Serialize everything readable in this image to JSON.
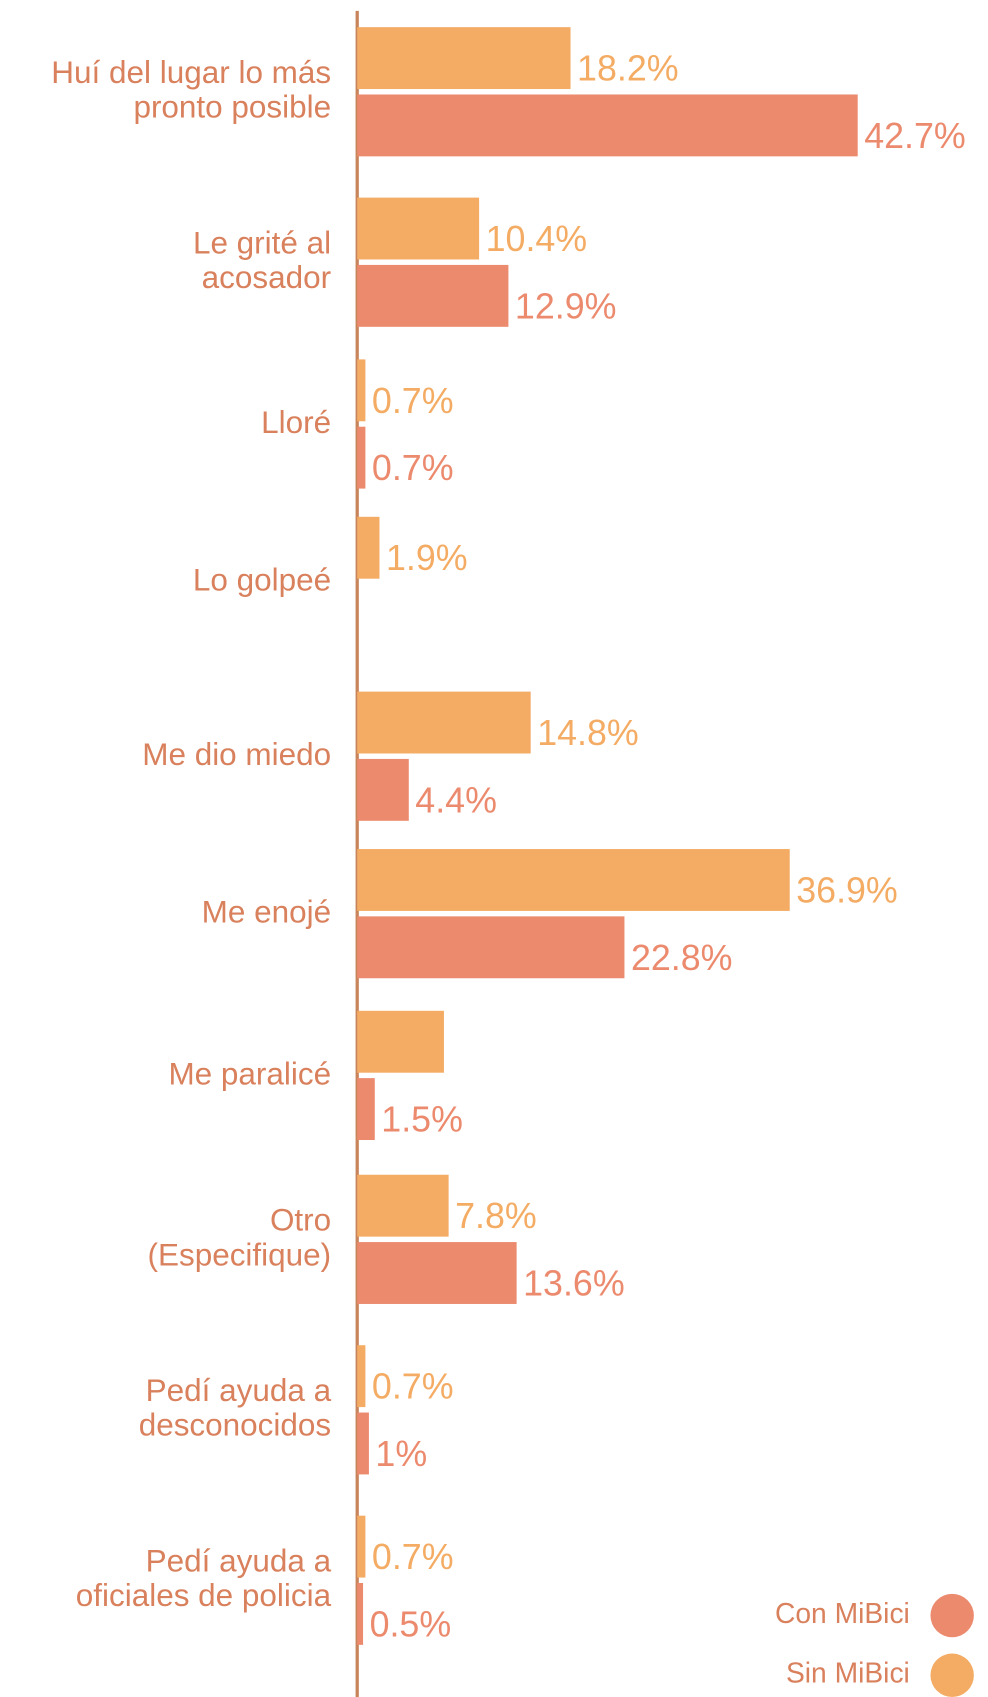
{
  "chart_data": {
    "type": "hbar",
    "categories": [
      "Huí del lugar lo más\npronto posible",
      "Le grité al\nacosador",
      "Lloré",
      "Lo golpeé",
      "Me dio miedo",
      "Me enojé",
      "Me paralicé",
      "Otro\n(Especifique)",
      "Pedí ayuda a\ndesconocidos",
      "Pedí ayuda a\noficiales de policia"
    ],
    "series": [
      {
        "name": "Sin MiBici",
        "color": "#f4ac64",
        "values": [
          18.2,
          10.4,
          0.7,
          1.9,
          14.8,
          36.9,
          7.4,
          7.8,
          0.7,
          0.7
        ],
        "value_labels": [
          "18.2%",
          "10.4%",
          "0.7%",
          "1.9%",
          "14.8%",
          "36.9%",
          null,
          "7.8%",
          "0.7%",
          "0.7%"
        ]
      },
      {
        "name": "Con MiBici",
        "color": "#ec8a6e",
        "values": [
          42.7,
          12.9,
          0.7,
          null,
          4.4,
          22.8,
          1.5,
          13.6,
          1,
          0.5
        ],
        "value_labels": [
          "42.7%",
          "12.9%",
          "0.7%",
          null,
          "4.4%",
          "22.8%",
          "1.5%",
          "13.6%",
          "1%",
          "0.5%"
        ]
      }
    ],
    "xlim": [
      0,
      42.7
    ],
    "legend": "bottom-right"
  }
}
